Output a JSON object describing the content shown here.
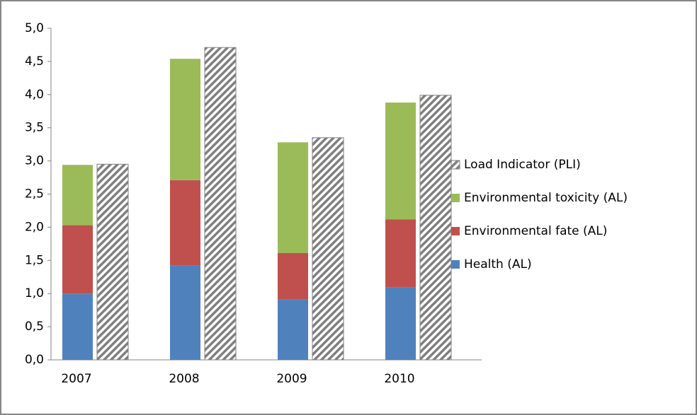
{
  "chart_data": {
    "type": "bar",
    "categories": [
      "2007",
      "2008",
      "2009",
      "2010"
    ],
    "series": [
      {
        "name": "Health (AL)",
        "color": "#4f81bd",
        "values": [
          1.0,
          1.42,
          0.91,
          1.09
        ]
      },
      {
        "name": "Environmental fate (AL)",
        "color": "#c0504d",
        "values": [
          1.03,
          1.29,
          0.7,
          1.03
        ]
      },
      {
        "name": "Environmental toxicity (AL)",
        "color": "#9bbb59",
        "values": [
          0.91,
          1.83,
          1.67,
          1.76
        ]
      },
      {
        "name": "Load Indicator (PLI)",
        "color": "#7f7f7f",
        "hatched": true,
        "values": [
          2.95,
          4.71,
          3.35,
          3.99
        ]
      }
    ],
    "ylim": [
      0,
      5
    ],
    "yticks": [
      {
        "value": 0,
        "label": "0,0"
      },
      {
        "value": 0.5,
        "label": "0,5"
      },
      {
        "value": 1,
        "label": "1,0"
      },
      {
        "value": 1.5,
        "label": "1,5"
      },
      {
        "value": 2,
        "label": "2,0"
      },
      {
        "value": 2.5,
        "label": "2,5"
      },
      {
        "value": 3,
        "label": "3,0"
      },
      {
        "value": 3.5,
        "label": "3,5"
      },
      {
        "value": 4,
        "label": "4,0"
      },
      {
        "value": 4.5,
        "label": "4,5"
      },
      {
        "value": 5,
        "label": "5,0"
      }
    ],
    "grid": false,
    "legend": "right"
  }
}
